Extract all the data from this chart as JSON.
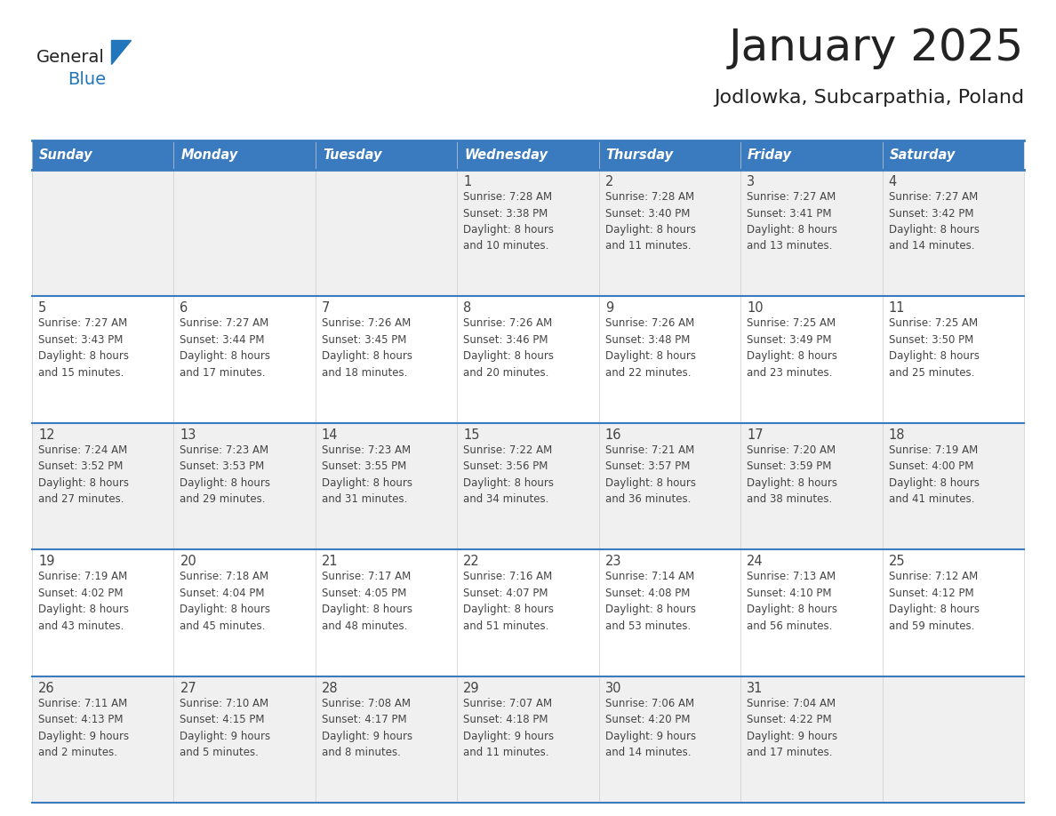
{
  "title": "January 2025",
  "subtitle": "Jodlowka, Subcarpathia, Poland",
  "days_of_week": [
    "Sunday",
    "Monday",
    "Tuesday",
    "Wednesday",
    "Thursday",
    "Friday",
    "Saturday"
  ],
  "header_bg": "#3a7abf",
  "header_text_color": "#ffffff",
  "row_bg_light": "#f0f0f0",
  "row_bg_white": "#ffffff",
  "cell_text_color": "#444444",
  "grid_line_color": "#3a7abf",
  "title_color": "#222222",
  "subtitle_color": "#222222",
  "logo_general_color": "#222222",
  "logo_blue_color": "#2176bc",
  "weeks": [
    {
      "days": [
        {
          "day": null,
          "info": null
        },
        {
          "day": null,
          "info": null
        },
        {
          "day": null,
          "info": null
        },
        {
          "day": 1,
          "info": "Sunrise: 7:28 AM\nSunset: 3:38 PM\nDaylight: 8 hours\nand 10 minutes."
        },
        {
          "day": 2,
          "info": "Sunrise: 7:28 AM\nSunset: 3:40 PM\nDaylight: 8 hours\nand 11 minutes."
        },
        {
          "day": 3,
          "info": "Sunrise: 7:27 AM\nSunset: 3:41 PM\nDaylight: 8 hours\nand 13 minutes."
        },
        {
          "day": 4,
          "info": "Sunrise: 7:27 AM\nSunset: 3:42 PM\nDaylight: 8 hours\nand 14 minutes."
        }
      ]
    },
    {
      "days": [
        {
          "day": 5,
          "info": "Sunrise: 7:27 AM\nSunset: 3:43 PM\nDaylight: 8 hours\nand 15 minutes."
        },
        {
          "day": 6,
          "info": "Sunrise: 7:27 AM\nSunset: 3:44 PM\nDaylight: 8 hours\nand 17 minutes."
        },
        {
          "day": 7,
          "info": "Sunrise: 7:26 AM\nSunset: 3:45 PM\nDaylight: 8 hours\nand 18 minutes."
        },
        {
          "day": 8,
          "info": "Sunrise: 7:26 AM\nSunset: 3:46 PM\nDaylight: 8 hours\nand 20 minutes."
        },
        {
          "day": 9,
          "info": "Sunrise: 7:26 AM\nSunset: 3:48 PM\nDaylight: 8 hours\nand 22 minutes."
        },
        {
          "day": 10,
          "info": "Sunrise: 7:25 AM\nSunset: 3:49 PM\nDaylight: 8 hours\nand 23 minutes."
        },
        {
          "day": 11,
          "info": "Sunrise: 7:25 AM\nSunset: 3:50 PM\nDaylight: 8 hours\nand 25 minutes."
        }
      ]
    },
    {
      "days": [
        {
          "day": 12,
          "info": "Sunrise: 7:24 AM\nSunset: 3:52 PM\nDaylight: 8 hours\nand 27 minutes."
        },
        {
          "day": 13,
          "info": "Sunrise: 7:23 AM\nSunset: 3:53 PM\nDaylight: 8 hours\nand 29 minutes."
        },
        {
          "day": 14,
          "info": "Sunrise: 7:23 AM\nSunset: 3:55 PM\nDaylight: 8 hours\nand 31 minutes."
        },
        {
          "day": 15,
          "info": "Sunrise: 7:22 AM\nSunset: 3:56 PM\nDaylight: 8 hours\nand 34 minutes."
        },
        {
          "day": 16,
          "info": "Sunrise: 7:21 AM\nSunset: 3:57 PM\nDaylight: 8 hours\nand 36 minutes."
        },
        {
          "day": 17,
          "info": "Sunrise: 7:20 AM\nSunset: 3:59 PM\nDaylight: 8 hours\nand 38 minutes."
        },
        {
          "day": 18,
          "info": "Sunrise: 7:19 AM\nSunset: 4:00 PM\nDaylight: 8 hours\nand 41 minutes."
        }
      ]
    },
    {
      "days": [
        {
          "day": 19,
          "info": "Sunrise: 7:19 AM\nSunset: 4:02 PM\nDaylight: 8 hours\nand 43 minutes."
        },
        {
          "day": 20,
          "info": "Sunrise: 7:18 AM\nSunset: 4:04 PM\nDaylight: 8 hours\nand 45 minutes."
        },
        {
          "day": 21,
          "info": "Sunrise: 7:17 AM\nSunset: 4:05 PM\nDaylight: 8 hours\nand 48 minutes."
        },
        {
          "day": 22,
          "info": "Sunrise: 7:16 AM\nSunset: 4:07 PM\nDaylight: 8 hours\nand 51 minutes."
        },
        {
          "day": 23,
          "info": "Sunrise: 7:14 AM\nSunset: 4:08 PM\nDaylight: 8 hours\nand 53 minutes."
        },
        {
          "day": 24,
          "info": "Sunrise: 7:13 AM\nSunset: 4:10 PM\nDaylight: 8 hours\nand 56 minutes."
        },
        {
          "day": 25,
          "info": "Sunrise: 7:12 AM\nSunset: 4:12 PM\nDaylight: 8 hours\nand 59 minutes."
        }
      ]
    },
    {
      "days": [
        {
          "day": 26,
          "info": "Sunrise: 7:11 AM\nSunset: 4:13 PM\nDaylight: 9 hours\nand 2 minutes."
        },
        {
          "day": 27,
          "info": "Sunrise: 7:10 AM\nSunset: 4:15 PM\nDaylight: 9 hours\nand 5 minutes."
        },
        {
          "day": 28,
          "info": "Sunrise: 7:08 AM\nSunset: 4:17 PM\nDaylight: 9 hours\nand 8 minutes."
        },
        {
          "day": 29,
          "info": "Sunrise: 7:07 AM\nSunset: 4:18 PM\nDaylight: 9 hours\nand 11 minutes."
        },
        {
          "day": 30,
          "info": "Sunrise: 7:06 AM\nSunset: 4:20 PM\nDaylight: 9 hours\nand 14 minutes."
        },
        {
          "day": 31,
          "info": "Sunrise: 7:04 AM\nSunset: 4:22 PM\nDaylight: 9 hours\nand 17 minutes."
        },
        {
          "day": null,
          "info": null
        }
      ]
    }
  ]
}
